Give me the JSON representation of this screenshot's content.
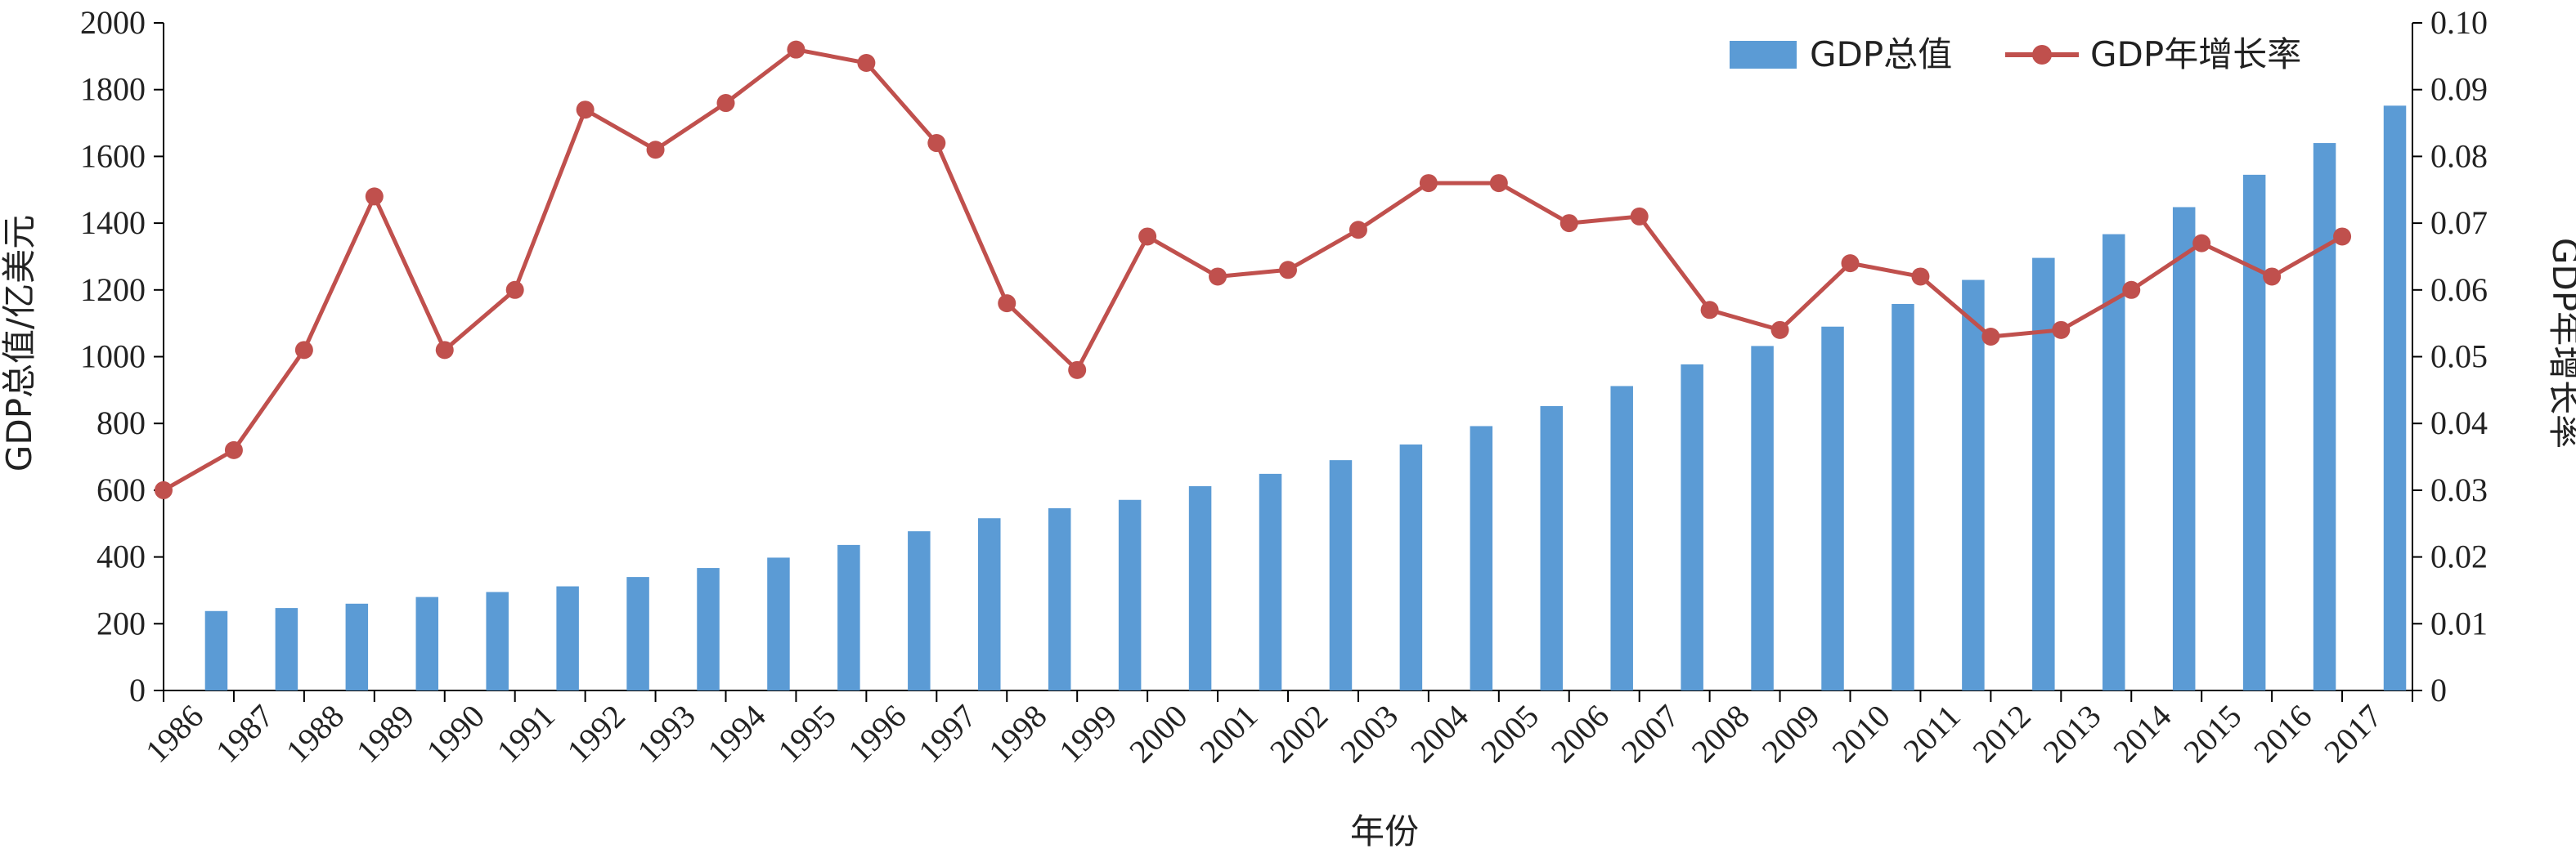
{
  "chart_data": {
    "type": "bar",
    "xlabel": "年份",
    "ylabel_left": "GDP总值/亿美元",
    "ylabel_right": "GDP年增长率",
    "ylim_left": [
      0,
      2000
    ],
    "ylim_right": [
      0,
      0.1
    ],
    "yticks_left": [
      "0",
      "200",
      "400",
      "600",
      "800",
      "1000",
      "1200",
      "1400",
      "1600",
      "1800",
      "2000"
    ],
    "yticks_right": [
      "0",
      "0.01",
      "0.02",
      "0.03",
      "0.04",
      "0.05",
      "0.06",
      "0.07",
      "0.08",
      "0.09",
      "0.10"
    ],
    "legend_position": "top-right",
    "categories": [
      "1986",
      "1987",
      "1988",
      "1989",
      "1990",
      "1991",
      "1992",
      "1993",
      "1994",
      "1995",
      "1996",
      "1997",
      "1998",
      "1999",
      "2000",
      "2001",
      "2002",
      "2003",
      "2004",
      "2005",
      "2006",
      "2007",
      "2008",
      "2009",
      "2010",
      "2011",
      "2012",
      "2013",
      "2014",
      "2015",
      "2016",
      "2017"
    ],
    "series": [
      {
        "name": "GDP总值",
        "kind": "bar",
        "axis": "left",
        "color": "#5b9bd5",
        "values": [
          238,
          247,
          260,
          280,
          295,
          312,
          340,
          367,
          398,
          436,
          477,
          516,
          546,
          571,
          612,
          649,
          690,
          737,
          792,
          852,
          912,
          977,
          1032,
          1090,
          1158,
          1230,
          1296,
          1367,
          1448,
          1545,
          1640,
          1752
        ]
      },
      {
        "name": "GDP年增长率",
        "kind": "line",
        "axis": "right",
        "color": "#c0504d",
        "values": [
          0.03,
          0.036,
          0.051,
          0.074,
          0.051,
          0.06,
          0.087,
          0.081,
          0.088,
          0.096,
          0.094,
          0.082,
          0.058,
          0.048,
          0.068,
          0.062,
          0.063,
          0.069,
          0.076,
          0.076,
          0.07,
          0.071,
          0.057,
          0.054,
          0.064,
          0.062,
          0.053,
          0.054,
          0.06,
          0.067,
          0.062,
          0.068
        ]
      }
    ]
  }
}
